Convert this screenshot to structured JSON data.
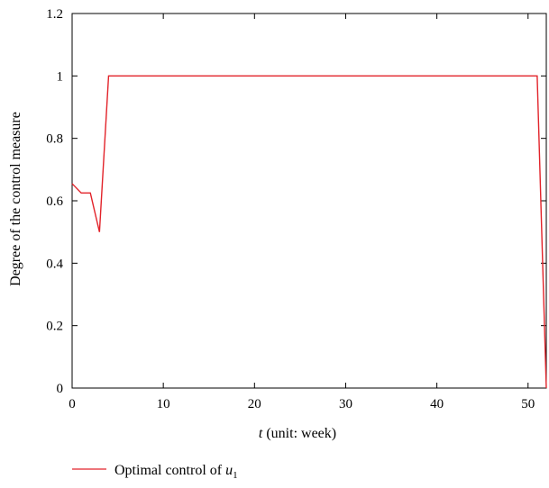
{
  "chart_data": {
    "type": "line",
    "xlabel": {
      "italic_part": "t",
      "rest": " (unit: week)"
    },
    "ylabel": "Degree of the control measure",
    "xlim": [
      0,
      52
    ],
    "ylim": [
      0,
      1.2
    ],
    "x_ticks": [
      "0",
      "10",
      "20",
      "30",
      "40",
      "50"
    ],
    "y_ticks": [
      "0",
      "0.2",
      "0.4",
      "0.6",
      "0.8",
      "1",
      "1.2"
    ],
    "grid": false,
    "legend_position": "bottom-left",
    "series": [
      {
        "name": {
          "prefix": "Optimal control of ",
          "var": "u",
          "sub": "1"
        },
        "color": "#e2232a",
        "x": [
          0,
          1,
          2,
          3,
          4,
          51,
          52
        ],
        "y": [
          0.655,
          0.625,
          0.625,
          0.5,
          1.0,
          1.0,
          0.0
        ]
      }
    ]
  }
}
